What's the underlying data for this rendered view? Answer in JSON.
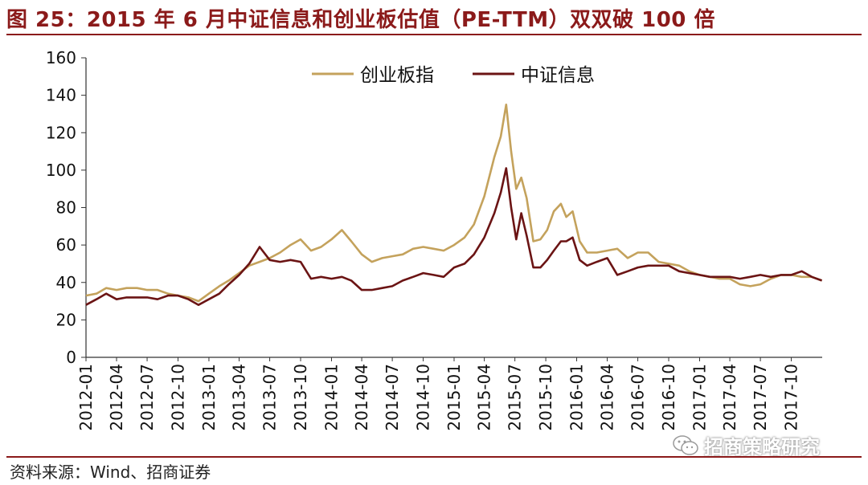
{
  "header": {
    "title": "图 25：2015 年 6 月中证信息和创业板估值（PE-TTM）双双破 100 倍"
  },
  "footer": {
    "source": "资料来源：Wind、招商证券"
  },
  "watermark": {
    "text": "招商策略研究",
    "icon": "wechat-icon"
  },
  "chart_data": {
    "type": "line",
    "title": "",
    "xlabel": "",
    "ylabel": "",
    "ylim": [
      0,
      160
    ],
    "yticks": [
      "0",
      "20",
      "40",
      "60",
      "80",
      "100",
      "120",
      "140",
      "160"
    ],
    "xlim": [
      "2012-01",
      "2018-01"
    ],
    "xticks": [
      "2012-01",
      "2012-04",
      "2012-07",
      "2012-10",
      "2013-01",
      "2013-04",
      "2013-07",
      "2013-10",
      "2014-01",
      "2014-04",
      "2014-07",
      "2014-10",
      "2015-01",
      "2015-04",
      "2015-07",
      "2015-10",
      "2016-01",
      "2016-04",
      "2016-07",
      "2016-10",
      "2017-01",
      "2017-04",
      "2017-07",
      "2017-10"
    ],
    "grid": false,
    "legend_position": "top-center",
    "series": [
      {
        "name": "创业板指",
        "color": "#C4A25C",
        "points": [
          [
            "2012-01-01",
            33
          ],
          [
            "2012-02-01",
            34
          ],
          [
            "2012-03-01",
            37
          ],
          [
            "2012-04-01",
            36
          ],
          [
            "2012-05-01",
            37
          ],
          [
            "2012-06-01",
            37
          ],
          [
            "2012-07-01",
            36
          ],
          [
            "2012-08-01",
            36
          ],
          [
            "2012-09-01",
            34
          ],
          [
            "2012-10-01",
            33
          ],
          [
            "2012-11-01",
            32
          ],
          [
            "2012-12-01",
            30
          ],
          [
            "2013-01-01",
            34
          ],
          [
            "2013-02-01",
            38
          ],
          [
            "2013-03-01",
            41
          ],
          [
            "2013-04-01",
            45
          ],
          [
            "2013-05-01",
            49
          ],
          [
            "2013-06-01",
            51
          ],
          [
            "2013-07-01",
            53
          ],
          [
            "2013-08-01",
            56
          ],
          [
            "2013-09-01",
            60
          ],
          [
            "2013-10-01",
            63
          ],
          [
            "2013-11-01",
            57
          ],
          [
            "2013-12-01",
            59
          ],
          [
            "2014-01-01",
            63
          ],
          [
            "2014-02-01",
            68
          ],
          [
            "2014-03-01",
            62
          ],
          [
            "2014-04-01",
            55
          ],
          [
            "2014-05-01",
            51
          ],
          [
            "2014-06-01",
            53
          ],
          [
            "2014-07-01",
            54
          ],
          [
            "2014-08-01",
            55
          ],
          [
            "2014-09-01",
            58
          ],
          [
            "2014-10-01",
            59
          ],
          [
            "2014-11-01",
            58
          ],
          [
            "2014-12-01",
            57
          ],
          [
            "2015-01-01",
            60
          ],
          [
            "2015-02-01",
            64
          ],
          [
            "2015-03-01",
            71
          ],
          [
            "2015-04-01",
            86
          ],
          [
            "2015-05-01",
            107
          ],
          [
            "2015-05-20",
            118
          ],
          [
            "2015-06-05",
            135
          ],
          [
            "2015-06-20",
            110
          ],
          [
            "2015-07-05",
            90
          ],
          [
            "2015-07-20",
            96
          ],
          [
            "2015-08-05",
            85
          ],
          [
            "2015-08-25",
            62
          ],
          [
            "2015-09-15",
            63
          ],
          [
            "2015-10-05",
            68
          ],
          [
            "2015-10-25",
            78
          ],
          [
            "2015-11-15",
            82
          ],
          [
            "2015-12-01",
            75
          ],
          [
            "2015-12-20",
            78
          ],
          [
            "2016-01-10",
            62
          ],
          [
            "2016-02-01",
            56
          ],
          [
            "2016-03-01",
            56
          ],
          [
            "2016-04-01",
            57
          ],
          [
            "2016-05-01",
            58
          ],
          [
            "2016-06-01",
            53
          ],
          [
            "2016-07-01",
            56
          ],
          [
            "2016-08-01",
            56
          ],
          [
            "2016-09-01",
            51
          ],
          [
            "2016-10-01",
            50
          ],
          [
            "2016-11-01",
            49
          ],
          [
            "2016-12-01",
            46
          ],
          [
            "2017-01-01",
            44
          ],
          [
            "2017-02-01",
            43
          ],
          [
            "2017-03-01",
            42
          ],
          [
            "2017-04-01",
            42
          ],
          [
            "2017-05-01",
            39
          ],
          [
            "2017-06-01",
            38
          ],
          [
            "2017-07-01",
            39
          ],
          [
            "2017-08-01",
            42
          ],
          [
            "2017-09-01",
            44
          ],
          [
            "2017-10-01",
            44
          ],
          [
            "2017-11-01",
            43
          ],
          [
            "2017-12-01",
            43
          ],
          [
            "2017-12-31",
            41
          ]
        ]
      },
      {
        "name": "中证信息",
        "color": "#6B1414",
        "points": [
          [
            "2012-01-01",
            28
          ],
          [
            "2012-02-01",
            31
          ],
          [
            "2012-03-01",
            34
          ],
          [
            "2012-04-01",
            31
          ],
          [
            "2012-05-01",
            32
          ],
          [
            "2012-06-01",
            32
          ],
          [
            "2012-07-01",
            32
          ],
          [
            "2012-08-01",
            31
          ],
          [
            "2012-09-01",
            33
          ],
          [
            "2012-10-01",
            33
          ],
          [
            "2012-11-01",
            31
          ],
          [
            "2012-12-01",
            28
          ],
          [
            "2013-01-01",
            31
          ],
          [
            "2013-02-01",
            34
          ],
          [
            "2013-03-01",
            39
          ],
          [
            "2013-04-01",
            44
          ],
          [
            "2013-05-01",
            50
          ],
          [
            "2013-06-01",
            59
          ],
          [
            "2013-07-01",
            52
          ],
          [
            "2013-08-01",
            51
          ],
          [
            "2013-09-01",
            52
          ],
          [
            "2013-10-01",
            51
          ],
          [
            "2013-11-01",
            42
          ],
          [
            "2013-12-01",
            43
          ],
          [
            "2014-01-01",
            42
          ],
          [
            "2014-02-01",
            43
          ],
          [
            "2014-03-01",
            41
          ],
          [
            "2014-04-01",
            36
          ],
          [
            "2014-05-01",
            36
          ],
          [
            "2014-06-01",
            37
          ],
          [
            "2014-07-01",
            38
          ],
          [
            "2014-08-01",
            41
          ],
          [
            "2014-09-01",
            43
          ],
          [
            "2014-10-01",
            45
          ],
          [
            "2014-11-01",
            44
          ],
          [
            "2014-12-01",
            43
          ],
          [
            "2015-01-01",
            48
          ],
          [
            "2015-02-01",
            50
          ],
          [
            "2015-03-01",
            55
          ],
          [
            "2015-04-01",
            64
          ],
          [
            "2015-05-01",
            77
          ],
          [
            "2015-05-20",
            88
          ],
          [
            "2015-06-05",
            101
          ],
          [
            "2015-06-20",
            80
          ],
          [
            "2015-07-05",
            63
          ],
          [
            "2015-07-20",
            77
          ],
          [
            "2015-08-05",
            65
          ],
          [
            "2015-08-25",
            48
          ],
          [
            "2015-09-15",
            48
          ],
          [
            "2015-10-05",
            52
          ],
          [
            "2015-10-25",
            57
          ],
          [
            "2015-11-15",
            62
          ],
          [
            "2015-12-01",
            62
          ],
          [
            "2015-12-20",
            64
          ],
          [
            "2016-01-10",
            52
          ],
          [
            "2016-02-01",
            49
          ],
          [
            "2016-03-01",
            51
          ],
          [
            "2016-04-01",
            53
          ],
          [
            "2016-05-01",
            44
          ],
          [
            "2016-06-01",
            46
          ],
          [
            "2016-07-01",
            48
          ],
          [
            "2016-08-01",
            49
          ],
          [
            "2016-09-01",
            49
          ],
          [
            "2016-10-01",
            49
          ],
          [
            "2016-11-01",
            46
          ],
          [
            "2016-12-01",
            45
          ],
          [
            "2017-01-01",
            44
          ],
          [
            "2017-02-01",
            43
          ],
          [
            "2017-03-01",
            43
          ],
          [
            "2017-04-01",
            43
          ],
          [
            "2017-05-01",
            42
          ],
          [
            "2017-06-01",
            43
          ],
          [
            "2017-07-01",
            44
          ],
          [
            "2017-08-01",
            43
          ],
          [
            "2017-09-01",
            44
          ],
          [
            "2017-10-01",
            44
          ],
          [
            "2017-11-01",
            46
          ],
          [
            "2017-12-01",
            43
          ],
          [
            "2017-12-31",
            41
          ]
        ]
      }
    ]
  }
}
